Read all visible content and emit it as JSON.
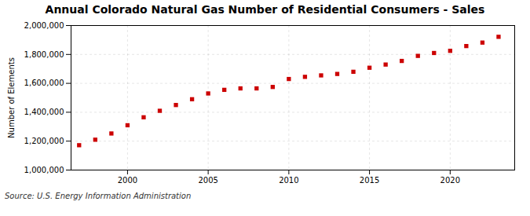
{
  "chart_data": {
    "type": "scatter",
    "title": "Annual Colorado Natural Gas Number of Residential Consumers - Sales",
    "ylabel": "Number of Elements",
    "source": "Source: U.S. Energy Information Administration",
    "x": [
      1997,
      1998,
      1999,
      2000,
      2001,
      2002,
      2003,
      2004,
      2005,
      2006,
      2007,
      2008,
      2009,
      2010,
      2011,
      2012,
      2013,
      2014,
      2015,
      2016,
      2017,
      2018,
      2019,
      2020,
      2021,
      2022,
      2023
    ],
    "values": [
      1172000,
      1210000,
      1253000,
      1310000,
      1365000,
      1410000,
      1450000,
      1490000,
      1530000,
      1555000,
      1565000,
      1565000,
      1575000,
      1630000,
      1645000,
      1655000,
      1665000,
      1680000,
      1708000,
      1730000,
      1755000,
      1790000,
      1810000,
      1825000,
      1858000,
      1882000,
      1922000
    ],
    "color": "#cc0000",
    "marker": "square",
    "xlim": [
      1996.5,
      2024
    ],
    "xticks": [
      2000,
      2005,
      2010,
      2015,
      2020
    ],
    "ylim": [
      1000000,
      2000000
    ],
    "yticks": [
      {
        "value": 1000000,
        "label": "1,000,000"
      },
      {
        "value": 1200000,
        "label": "1,200,000"
      },
      {
        "value": 1400000,
        "label": "1,400,000"
      },
      {
        "value": 1600000,
        "label": "1,600,000"
      },
      {
        "value": 1800000,
        "label": "1,800,000"
      },
      {
        "value": 2000000,
        "label": "2,000,000"
      }
    ],
    "grid": true
  }
}
